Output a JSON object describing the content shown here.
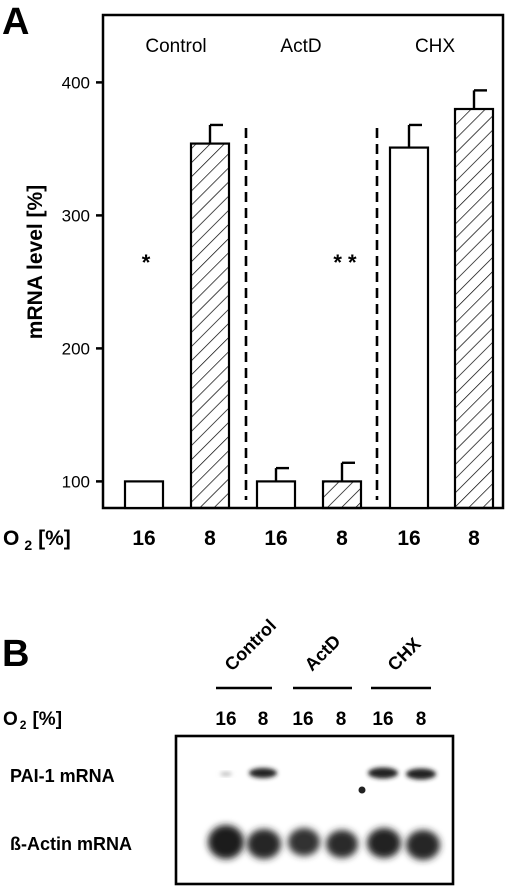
{
  "panel_a": {
    "letter": "A",
    "ylabel": "mRNA level [%]",
    "xlabel_prefix": "O",
    "xlabel_sub": "2",
    "xlabel_suffix": "[%]",
    "yticks": [
      "100",
      "200",
      "300",
      "400"
    ],
    "groups": [
      "Control",
      "ActD",
      "CHX"
    ],
    "bar_labels": [
      "16",
      "8",
      "16",
      "8",
      "16",
      "8"
    ],
    "annotations": [
      "*",
      "* *"
    ]
  },
  "chart_data": {
    "type": "bar",
    "title": "",
    "ylabel": "mRNA level [%]",
    "xlabel": "O2 [%]",
    "ylim": [
      80,
      450
    ],
    "y_ticks": [
      100,
      200,
      300,
      400
    ],
    "groups": [
      "Control",
      "ActD",
      "CHX"
    ],
    "categories": [
      "16",
      "8",
      "16",
      "8",
      "16",
      "8"
    ],
    "category_group": [
      "Control",
      "Control",
      "ActD",
      "ActD",
      "CHX",
      "CHX"
    ],
    "values": [
      100,
      354,
      100,
      100,
      351,
      380
    ],
    "errors": [
      0,
      14,
      10,
      14,
      17,
      14
    ],
    "hatched": [
      false,
      true,
      false,
      true,
      false,
      true
    ],
    "annotations": [
      {
        "text": "*",
        "at_value": 260,
        "category_index": 0
      },
      {
        "text": "* *",
        "at_value": 260,
        "category_index": 3
      }
    ],
    "grid": false,
    "legend": "none"
  },
  "panel_b": {
    "letter": "B",
    "groups": [
      "Control",
      "ActD",
      "CHX"
    ],
    "o2_label_prefix": "O",
    "o2_label_sub": "2",
    "o2_label_suffix": "[%]",
    "lane_labels": [
      "16",
      "8",
      "16",
      "8",
      "16",
      "8"
    ],
    "row_labels": [
      "PAI-1 mRNA",
      "ß-Actin mRNA"
    ]
  }
}
